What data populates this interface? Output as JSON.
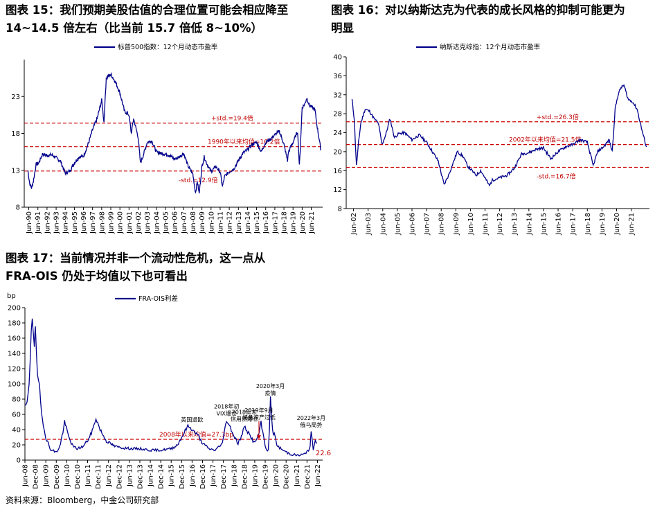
{
  "titles": {
    "fig15_l1": "图表 15：我们预期美股估值的合理位置可能会相应降至",
    "fig15_l2": "14~14.5 倍左右（比当前 15.7 倍低 8~10%）",
    "fig16_l1": "图表 16：对以纳斯达克为代表的成长风格的抑制可能更为",
    "fig16_l2": "明显",
    "fig17_l1": "图表 17：当前情况并非一个流动性危机，这一点从",
    "fig17_l2": "FRA-OIS 仍处于均值以下也可看出"
  },
  "source": "资料来源：Bloomberg，中金公司研究部",
  "colors": {
    "series": "#00008b",
    "ref": "#cc0000"
  },
  "chart_data": [
    {
      "id": "fig15",
      "type": "line",
      "series_name": "标普500指数：12个月动态市盈率",
      "ylim": [
        8,
        28
      ],
      "yticks": [
        8,
        13,
        18,
        23
      ],
      "xlim": [
        1990.0,
        2022.75
      ],
      "xticks": [
        "Jun-90",
        "Jun-91",
        "Jun-92",
        "Jun-93",
        "Jun-94",
        "Jun-95",
        "Jun-96",
        "Jun-97",
        "Jun-98",
        "Jun-99",
        "Jun-00",
        "Jun-01",
        "Jun-02",
        "Jun-03",
        "Jun-04",
        "Jun-05",
        "Jun-06",
        "Jun-07",
        "Jun-08",
        "Jun-09",
        "Jun-10",
        "Jun-11",
        "Jun-12",
        "Jun-13",
        "Jun-14",
        "Jun-15",
        "Jun-16",
        "Jun-17",
        "Jun-18",
        "Jun-19",
        "Jun-20",
        "Jun-21"
      ],
      "grid": false,
      "legend": "top-center",
      "series": [
        {
          "name": "标普500指数：12个月动态市盈率",
          "points": [
            [
              1990.4,
              13.0
            ],
            [
              1990.6,
              11.2
            ],
            [
              1990.8,
              10.6
            ],
            [
              1991.0,
              11.5
            ],
            [
              1991.3,
              13.8
            ],
            [
              1991.6,
              14.0
            ],
            [
              1992.0,
              15.2
            ],
            [
              1992.5,
              15.0
            ],
            [
              1993.0,
              15.1
            ],
            [
              1993.5,
              14.7
            ],
            [
              1994.0,
              14.2
            ],
            [
              1994.5,
              12.6
            ],
            [
              1995.0,
              12.9
            ],
            [
              1995.5,
              14.0
            ],
            [
              1996.0,
              14.8
            ],
            [
              1996.5,
              14.9
            ],
            [
              1997.0,
              16.5
            ],
            [
              1997.5,
              18.5
            ],
            [
              1998.0,
              20.0
            ],
            [
              1998.5,
              22.5
            ],
            [
              1998.75,
              19.5
            ],
            [
              1999.0,
              25.5
            ],
            [
              1999.5,
              26.0
            ],
            [
              2000.0,
              25.0
            ],
            [
              2000.5,
              23.5
            ],
            [
              2001.0,
              21.0
            ],
            [
              2001.5,
              20.5
            ],
            [
              2001.75,
              18.0
            ],
            [
              2002.0,
              20.0
            ],
            [
              2002.5,
              17.5
            ],
            [
              2002.75,
              14.0
            ],
            [
              2003.0,
              14.8
            ],
            [
              2003.5,
              16.8
            ],
            [
              2004.0,
              17.0
            ],
            [
              2004.5,
              15.5
            ],
            [
              2005.0,
              15.3
            ],
            [
              2005.5,
              15.2
            ],
            [
              2006.0,
              15.0
            ],
            [
              2006.5,
              14.5
            ],
            [
              2007.0,
              14.8
            ],
            [
              2007.5,
              15.3
            ],
            [
              2008.0,
              13.5
            ],
            [
              2008.5,
              12.5
            ],
            [
              2008.8,
              10.0
            ],
            [
              2009.0,
              11.5
            ],
            [
              2009.2,
              9.8
            ],
            [
              2009.5,
              13.5
            ],
            [
              2009.75,
              14.8
            ],
            [
              2010.0,
              14.0
            ],
            [
              2010.5,
              12.8
            ],
            [
              2011.0,
              13.5
            ],
            [
              2011.5,
              12.8
            ],
            [
              2011.75,
              10.8
            ],
            [
              2012.0,
              12.2
            ],
            [
              2012.5,
              12.8
            ],
            [
              2013.0,
              13.2
            ],
            [
              2013.5,
              14.3
            ],
            [
              2014.0,
              15.3
            ],
            [
              2014.5,
              15.8
            ],
            [
              2015.0,
              16.5
            ],
            [
              2015.5,
              16.8
            ],
            [
              2016.0,
              15.5
            ],
            [
              2016.5,
              16.8
            ],
            [
              2017.0,
              17.2
            ],
            [
              2017.5,
              17.8
            ],
            [
              2018.0,
              18.3
            ],
            [
              2018.5,
              16.5
            ],
            [
              2018.9,
              14.3
            ],
            [
              2019.0,
              15.5
            ],
            [
              2019.5,
              16.8
            ],
            [
              2020.0,
              18.3
            ],
            [
              2020.2,
              13.5
            ],
            [
              2020.5,
              21.5
            ],
            [
              2020.8,
              22.0
            ],
            [
              2021.0,
              22.8
            ],
            [
              2021.3,
              21.8
            ],
            [
              2021.6,
              21.5
            ],
            [
              2021.9,
              21.2
            ],
            [
              2022.2,
              18.5
            ],
            [
              2022.4,
              17.0
            ],
            [
              2022.55,
              15.7
            ]
          ]
        }
      ],
      "references": [
        {
          "label": "+std.=19.4倍",
          "value": 19.4
        },
        {
          "label": "1990年以来均值=16.2倍",
          "value": 16.2
        },
        {
          "label": "-std.=12.9倍",
          "value": 12.9
        }
      ]
    },
    {
      "id": "fig16",
      "type": "line",
      "series_name": "纳斯达克综指：12个月动态市盈率",
      "ylim": [
        8,
        40
      ],
      "yticks": [
        8,
        12,
        16,
        20,
        24,
        28,
        32,
        36,
        40
      ],
      "xlim": [
        2002.0,
        2022.75
      ],
      "xticks": [
        "Jun-02",
        "Jun-03",
        "Jun-04",
        "Jun-05",
        "Jun-06",
        "Jun-07",
        "Jun-08",
        "Jun-09",
        "Jun-10",
        "Jun-11",
        "Jun-12",
        "Jun-13",
        "Jun-14",
        "Jun-15",
        "Jun-16",
        "Jun-17",
        "Jun-18",
        "Jun-19",
        "Jun-20",
        "Jun-21"
      ],
      "grid": false,
      "legend": "top-center",
      "series": [
        {
          "name": "纳斯达克综指：12个月动态市盈率",
          "points": [
            [
              2002.4,
              31.0
            ],
            [
              2002.55,
              27.0
            ],
            [
              2002.7,
              17.0
            ],
            [
              2002.85,
              22.0
            ],
            [
              2003.0,
              26.0
            ],
            [
              2003.3,
              29.0
            ],
            [
              2003.6,
              28.5
            ],
            [
              2003.9,
              27.0
            ],
            [
              2004.2,
              26.0
            ],
            [
              2004.45,
              21.5
            ],
            [
              2004.7,
              23.5
            ],
            [
              2005.0,
              27.0
            ],
            [
              2005.3,
              23.0
            ],
            [
              2005.6,
              23.8
            ],
            [
              2006.0,
              24.0
            ],
            [
              2006.5,
              22.5
            ],
            [
              2007.0,
              23.5
            ],
            [
              2007.5,
              22.0
            ],
            [
              2008.0,
              19.5
            ],
            [
              2008.3,
              18.0
            ],
            [
              2008.7,
              13.0
            ],
            [
              2009.0,
              15.0
            ],
            [
              2009.3,
              17.5
            ],
            [
              2009.6,
              20.0
            ],
            [
              2010.0,
              19.0
            ],
            [
              2010.3,
              17.0
            ],
            [
              2010.6,
              16.0
            ],
            [
              2010.9,
              15.0
            ],
            [
              2011.2,
              16.0
            ],
            [
              2011.5,
              14.5
            ],
            [
              2011.8,
              12.8
            ],
            [
              2012.0,
              14.0
            ],
            [
              2012.5,
              14.5
            ],
            [
              2013.0,
              15.0
            ],
            [
              2013.5,
              16.5
            ],
            [
              2014.0,
              19.5
            ],
            [
              2014.5,
              19.8
            ],
            [
              2015.0,
              20.5
            ],
            [
              2015.5,
              20.8
            ],
            [
              2016.0,
              18.5
            ],
            [
              2016.5,
              20.0
            ],
            [
              2017.0,
              21.0
            ],
            [
              2017.5,
              21.5
            ],
            [
              2018.0,
              22.5
            ],
            [
              2018.5,
              22.0
            ],
            [
              2018.9,
              17.0
            ],
            [
              2019.2,
              20.0
            ],
            [
              2019.6,
              21.0
            ],
            [
              2020.0,
              22.5
            ],
            [
              2020.2,
              20.0
            ],
            [
              2020.4,
              29.0
            ],
            [
              2020.6,
              32.0
            ],
            [
              2020.8,
              33.5
            ],
            [
              2021.0,
              34.0
            ],
            [
              2021.3,
              31.0
            ],
            [
              2021.6,
              30.5
            ],
            [
              2021.9,
              29.0
            ],
            [
              2022.2,
              25.0
            ],
            [
              2022.45,
              22.0
            ],
            [
              2022.55,
              21.0
            ]
          ]
        }
      ],
      "references": [
        {
          "label": "+std.=26.3倍",
          "value": 26.3
        },
        {
          "label": "2002年以来均值=21.5倍",
          "value": 21.5
        },
        {
          "label": "-std.=16.7倍",
          "value": 16.7
        }
      ]
    },
    {
      "id": "fig17",
      "type": "line",
      "series_name": "FRA-OIS利差",
      "ylabel": "bp",
      "ylim": [
        0,
        200
      ],
      "yticks": [
        0,
        20,
        40,
        60,
        80,
        100,
        120,
        140,
        160,
        180,
        200
      ],
      "xlim": [
        2008.5,
        2022.75
      ],
      "xticks": [
        "Jun-08",
        "Dec-08",
        "Jun-09",
        "Dec-09",
        "Jun-10",
        "Dec-10",
        "Jun-11",
        "Dec-11",
        "Jun-12",
        "Dec-12",
        "Jun-13",
        "Dec-13",
        "Jun-14",
        "Dec-14",
        "Jun-15",
        "Dec-15",
        "Jun-16",
        "Dec-16",
        "Jun-17",
        "Dec-17",
        "Jun-18",
        "Dec-18",
        "Jun-19",
        "Dec-19",
        "Jun-20",
        "Dec-20",
        "Jun-21",
        "Dec-21",
        "Jun-22"
      ],
      "grid": false,
      "legend": "top-center",
      "series": [
        {
          "name": "FRA-OIS利差",
          "points": [
            [
              2008.5,
              70
            ],
            [
              2008.6,
              75
            ],
            [
              2008.7,
              95
            ],
            [
              2008.8,
              170
            ],
            [
              2008.85,
              188
            ],
            [
              2008.95,
              150
            ],
            [
              2009.0,
              175
            ],
            [
              2009.1,
              110
            ],
            [
              2009.2,
              95
            ],
            [
              2009.3,
              60
            ],
            [
              2009.5,
              30
            ],
            [
              2009.7,
              15
            ],
            [
              2010.0,
              10
            ],
            [
              2010.2,
              20
            ],
            [
              2010.4,
              50
            ],
            [
              2010.6,
              30
            ],
            [
              2010.8,
              18
            ],
            [
              2011.0,
              15
            ],
            [
              2011.3,
              18
            ],
            [
              2011.6,
              30
            ],
            [
              2011.8,
              45
            ],
            [
              2011.9,
              55
            ],
            [
              2012.1,
              40
            ],
            [
              2012.4,
              25
            ],
            [
              2012.8,
              18
            ],
            [
              2013.2,
              16
            ],
            [
              2013.6,
              15
            ],
            [
              2014.0,
              15
            ],
            [
              2014.5,
              13
            ],
            [
              2015.0,
              13
            ],
            [
              2015.5,
              15
            ],
            [
              2015.8,
              20
            ],
            [
              2016.0,
              30
            ],
            [
              2016.3,
              45
            ],
            [
              2016.5,
              40
            ],
            [
              2016.8,
              32
            ],
            [
              2017.0,
              22
            ],
            [
              2017.3,
              15
            ],
            [
              2017.6,
              13
            ],
            [
              2017.9,
              20
            ],
            [
              2018.0,
              30
            ],
            [
              2018.15,
              52
            ],
            [
              2018.3,
              45
            ],
            [
              2018.5,
              32
            ],
            [
              2018.7,
              22
            ],
            [
              2018.9,
              33
            ],
            [
              2019.0,
              45
            ],
            [
              2019.2,
              35
            ],
            [
              2019.5,
              22
            ],
            [
              2019.7,
              35
            ],
            [
              2019.8,
              48
            ],
            [
              2020.0,
              20
            ],
            [
              2020.15,
              8
            ],
            [
              2020.25,
              80
            ],
            [
              2020.35,
              40
            ],
            [
              2020.6,
              18
            ],
            [
              2020.9,
              12
            ],
            [
              2021.2,
              8
            ],
            [
              2021.6,
              6
            ],
            [
              2021.9,
              8
            ],
            [
              2022.0,
              12
            ],
            [
              2022.15,
              15
            ],
            [
              2022.2,
              38
            ],
            [
              2022.3,
              15
            ],
            [
              2022.4,
              25
            ],
            [
              2022.48,
              22.6
            ]
          ]
        }
      ],
      "references": [
        {
          "label": "2008年以来均值=27.3bp",
          "value": 27.3
        }
      ],
      "last_value_label": "22.6",
      "annotations": [
        {
          "lines": [
            "英国退欧"
          ],
          "x": 2016.5,
          "y": 45
        },
        {
          "lines": [
            "2018年初",
            "VIX爆仓"
          ],
          "x": 2018.15,
          "y": 53
        },
        {
          "lines": [
            "2018年末",
            "信用债爆仓"
          ],
          "x": 2019.0,
          "y": 46
        },
        {
          "lines": [
            "2019年9月",
            "储备资产过低"
          ],
          "x": 2019.7,
          "y": 48
        },
        {
          "lines": [
            "2020年3月",
            "疫情"
          ],
          "x": 2020.25,
          "y": 80
        },
        {
          "lines": [
            "2022年3月",
            "俄乌局势"
          ],
          "x": 2022.2,
          "y": 38
        }
      ]
    }
  ]
}
